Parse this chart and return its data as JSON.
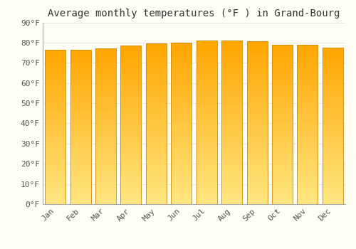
{
  "title": "Average monthly temperatures (°F ) in Grand-Bourg",
  "months": [
    "Jan",
    "Feb",
    "Mar",
    "Apr",
    "May",
    "Jun",
    "Jul",
    "Aug",
    "Sep",
    "Oct",
    "Nov",
    "Dec"
  ],
  "values": [
    76.5,
    76.5,
    77.0,
    78.5,
    79.5,
    80.0,
    81.0,
    81.0,
    80.5,
    79.0,
    79.0,
    77.5
  ],
  "ylim": [
    0,
    90
  ],
  "yticks": [
    0,
    10,
    20,
    30,
    40,
    50,
    60,
    70,
    80,
    90
  ],
  "ytick_labels": [
    "0°F",
    "10°F",
    "20°F",
    "30°F",
    "40°F",
    "50°F",
    "60°F",
    "70°F",
    "80°F",
    "90°F"
  ],
  "bar_color_bottom": "#FFE680",
  "bar_color_top": "#FFA500",
  "bar_edge_color": "#CC8800",
  "background_color": "#FFFEF5",
  "grid_color": "#E8E8E8",
  "title_fontsize": 10,
  "tick_fontsize": 8,
  "font_family": "monospace",
  "bar_width": 0.82
}
